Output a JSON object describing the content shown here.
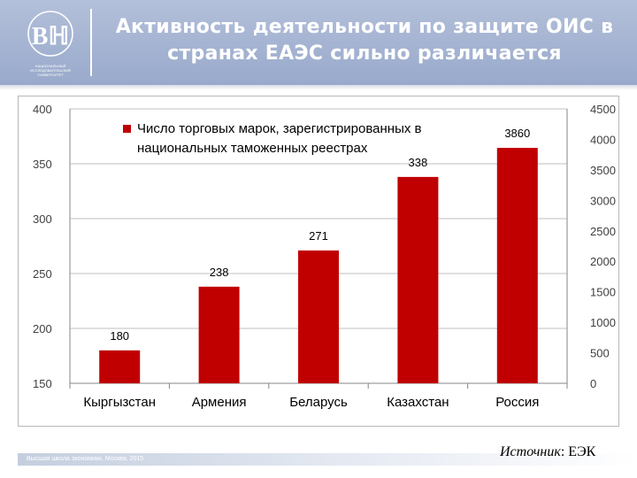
{
  "header": {
    "title_line1": "Активность деятельности по защите ОИС в",
    "title_line2": "странах ЕАЭС сильно различается",
    "logo_text": "НАЦИОНАЛЬНЫЙ ИССЛЕДОВАТЕЛЬСКИЙ УНИВЕРСИТЕТ",
    "colors": {
      "header_bg": "#a3b2d1",
      "title": "#ffffff"
    }
  },
  "chart_data": {
    "type": "bar",
    "title": "",
    "categories": [
      "Кыргызстан",
      "Армения",
      "Беларусь",
      "Казахстан",
      "Россия"
    ],
    "series": [
      {
        "name": "Число торговых марок, зарегистрированных в национальных таможенных реестрах",
        "legend_line1": "Число торговых марок, зарегистрированных в",
        "legend_line2": "национальных таможенных реестрах",
        "values": [
          180,
          238,
          271,
          338,
          3860
        ],
        "axis": [
          "left",
          "left",
          "left",
          "left",
          "right"
        ],
        "labels": [
          "180",
          "238",
          "271",
          "338",
          "3860"
        ],
        "color": "#c00000"
      }
    ],
    "y_left": {
      "min": 150,
      "max": 400,
      "ticks": [
        "150",
        "200",
        "250",
        "300",
        "350",
        "400"
      ]
    },
    "y_right": {
      "min": 0,
      "max": 4500,
      "ticks": [
        "0",
        "500",
        "1000",
        "1500",
        "2000",
        "2500",
        "3000",
        "3500",
        "4000",
        "4500"
      ]
    },
    "grid": true,
    "legend_position": "top-left"
  },
  "footer": {
    "text": "Высшая школа экономики, Москва, 2015",
    "source_label": "Источник",
    "source_value": ": ЕЭК"
  }
}
